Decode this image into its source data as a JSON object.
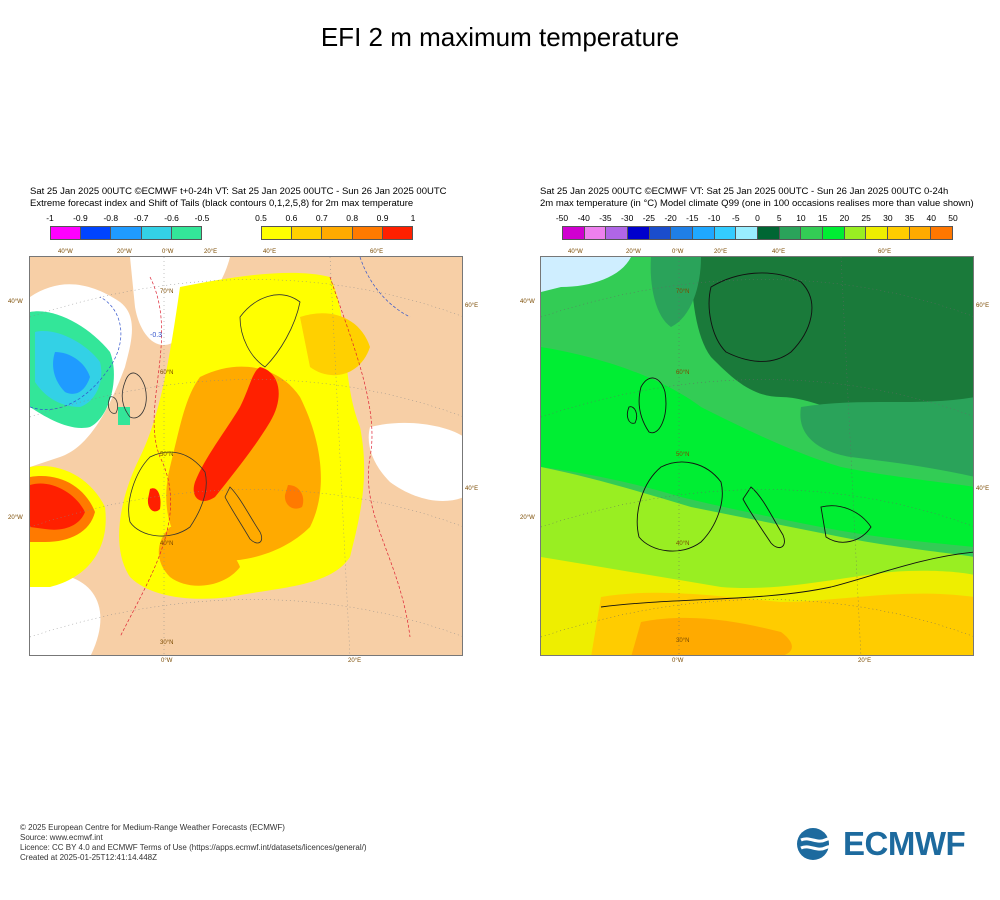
{
  "title": "EFI 2 m maximum temperature",
  "left_panel": {
    "header_line1": "Sat 25 Jan 2025 00UTC ©ECMWF t+0-24h  VT: Sat 25 Jan 2025 00UTC - Sun 26 Jan 2025 00UTC",
    "header_line2": "Extreme forecast index and Shift of Tails (black contours 0,1,2,5,8) for 2m max temperature",
    "legend_cold": {
      "labels": [
        "-1",
        "-0.9",
        "-0.8",
        "-0.7",
        "-0.6",
        "-0.5"
      ],
      "colors": [
        "#ff00ff",
        "#0044ff",
        "#1f9bff",
        "#33d1e6",
        "#33e699"
      ]
    },
    "legend_warm": {
      "labels": [
        "0.5",
        "0.6",
        "0.7",
        "0.8",
        "0.9",
        "1"
      ],
      "colors": [
        "#ffff00",
        "#ffd000",
        "#ffaa00",
        "#ff7a00",
        "#ff2000"
      ]
    },
    "coord_labels": {
      "top": [
        "40°W",
        "20°W",
        "0°W",
        "20°E",
        "40°E",
        "60°E"
      ],
      "left": [
        "40°W",
        "20°W"
      ],
      "right": [
        "60°E",
        "40°E"
      ],
      "bottom": [
        "0°W",
        "20°E"
      ],
      "lat": [
        "70°N",
        "60°N",
        "50°N",
        "40°N",
        "30°N"
      ]
    },
    "contour_label": "-0.3"
  },
  "right_panel": {
    "header_line1": "Sat 25 Jan 2025 00UTC ©ECMWF VT: Sat 25 Jan 2025 00UTC - Sun 26 Jan 2025 00UTC   0-24h",
    "header_line2": "2m max temperature (in °C)  Model climate Q99 (one in 100 occasions realises more than value shown)",
    "legend": {
      "labels": [
        "-50",
        "-40",
        "-35",
        "-30",
        "-25",
        "-20",
        "-15",
        "-10",
        "-5",
        "0",
        "5",
        "10",
        "15",
        "20",
        "25",
        "30",
        "35",
        "40",
        "50"
      ],
      "colors": [
        "#d000d0",
        "#ee80ee",
        "#b066e6",
        "#0000cc",
        "#1a4dcc",
        "#1f7fe6",
        "#1fa8ff",
        "#33ccff",
        "#99eeff",
        "#006633",
        "#2aa35a",
        "#33cc55",
        "#00ee33",
        "#99ee22",
        "#eeee00",
        "#ffcc00",
        "#ffaa00",
        "#ff7700"
      ]
    },
    "coord_labels": {
      "top": [
        "40°W",
        "20°W",
        "0°W",
        "20°E",
        "40°E",
        "60°E"
      ],
      "left": [
        "40°W",
        "20°W"
      ],
      "right": [
        "60°E",
        "40°E"
      ],
      "bottom": [
        "0°W",
        "20°E"
      ],
      "lat": [
        "70°N",
        "60°N",
        "50°N",
        "40°N",
        "30°N"
      ]
    }
  },
  "footer": {
    "line1": "© 2025 European Centre for Medium-Range Weather Forecasts (ECMWF)",
    "line2": "Source: www.ecmwf.int",
    "line3": "Licence: CC BY 4.0 and ECMWF Terms of Use (https://apps.ecmwf.int/datasets/licences/general/)",
    "line4": "Created at 2025-01-25T12:41:14.448Z"
  },
  "logo": {
    "text": "ECMWF",
    "color": "#1d6a9e"
  }
}
